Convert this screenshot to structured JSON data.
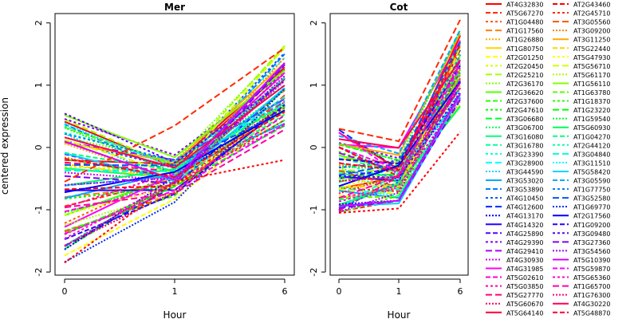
{
  "chart_data": {
    "type": "line",
    "ylabel": "centered expression",
    "xlabel": "Hour",
    "x": [
      "0",
      "1",
      "6"
    ],
    "y_ticks": [
      -2,
      -1,
      0,
      1,
      2
    ],
    "ylim": [
      -2.05,
      2.15
    ],
    "grid": false,
    "legend_placement": "right",
    "panels": [
      {
        "title": "Mer",
        "start": [
          -1.85,
          0.55
        ],
        "mid": [
          -0.9,
          -0.1
        ],
        "end": [
          0.0,
          1.75
        ],
        "outlier_low": [
          -1.85,
          -0.55,
          -0.2
        ],
        "outlier_high": [
          -0.55,
          0.35,
          1.6
        ]
      },
      {
        "title": "Cot",
        "start": [
          -1.05,
          0.3
        ],
        "mid": [
          -0.95,
          0.1
        ],
        "end": [
          0.6,
          2.05
        ],
        "outlier_low": [
          -1.05,
          -0.98,
          0.25
        ],
        "outlier_high": [
          0.3,
          0.1,
          2.05
        ]
      }
    ],
    "series_palette": [
      "#ff0000",
      "#ff2a00",
      "#ff5500",
      "#ff8000",
      "#ffaa00",
      "#ffd400",
      "#ffff00",
      "#d4ff00",
      "#aaff00",
      "#80ff00",
      "#55ff00",
      "#2aff00",
      "#00ff00",
      "#00ff2a",
      "#00ff55",
      "#00ff80",
      "#00ffaa",
      "#00ffd4",
      "#00ffff",
      "#00d4ff",
      "#00aaff",
      "#0080ff",
      "#0055ff",
      "#002aff",
      "#0000ff",
      "#2a00ff",
      "#5500ff",
      "#8000ff",
      "#aa00ff",
      "#d400ff",
      "#ff00ff",
      "#ff00d4",
      "#ff00aa",
      "#ff0080",
      "#ff0055",
      "#ff002a"
    ],
    "legend_col1": [
      "AT4G32830",
      "AT5G67270",
      "AT1G04480",
      "AT1G17560",
      "AT1G26880",
      "AT1G80750",
      "AT2G01250",
      "AT2G20450",
      "AT2G25210",
      "AT2G36170",
      "AT2G36620",
      "AT2G37600",
      "AT2G47610",
      "AT3G06680",
      "AT3G06700",
      "AT3G16080",
      "AT3G16780",
      "AT3G23390",
      "AT3G28900",
      "AT3G44590",
      "AT3G53020",
      "AT3G53890",
      "AT4G10450",
      "AT4G12600",
      "AT4G13170",
      "AT4G14320",
      "AT4G25890",
      "AT4G29390",
      "AT4G29410",
      "AT4G30930",
      "AT4G31985",
      "AT5G02610",
      "AT5G03850",
      "AT5G27770",
      "AT5G60670",
      "AT5G64140"
    ],
    "legend_col2": [
      "AT2G43460",
      "AT2G45710",
      "AT3G05560",
      "AT3G09200",
      "AT3G11250",
      "AT5G22440",
      "AT5G47930",
      "AT5G56710",
      "AT5G61170",
      "AT1G56110",
      "AT1G63780",
      "AT1G18370",
      "AT1G23220",
      "AT1G59540",
      "AT5G60930",
      "AT1G04270",
      "AT2G44120",
      "AT3G04840",
      "AT3G11510",
      "AT5G58420",
      "AT3G05590",
      "AT1G77750",
      "AT3G52580",
      "AT1G69770",
      "AT2G17560",
      "AT1G09200",
      "AT3G09480",
      "AT3G27360",
      "AT3G54560",
      "AT5G10390",
      "AT5G59870",
      "AT5G65360",
      "AT1G65700",
      "AT1G76300",
      "AT4G30220",
      "AT5G48870"
    ]
  }
}
